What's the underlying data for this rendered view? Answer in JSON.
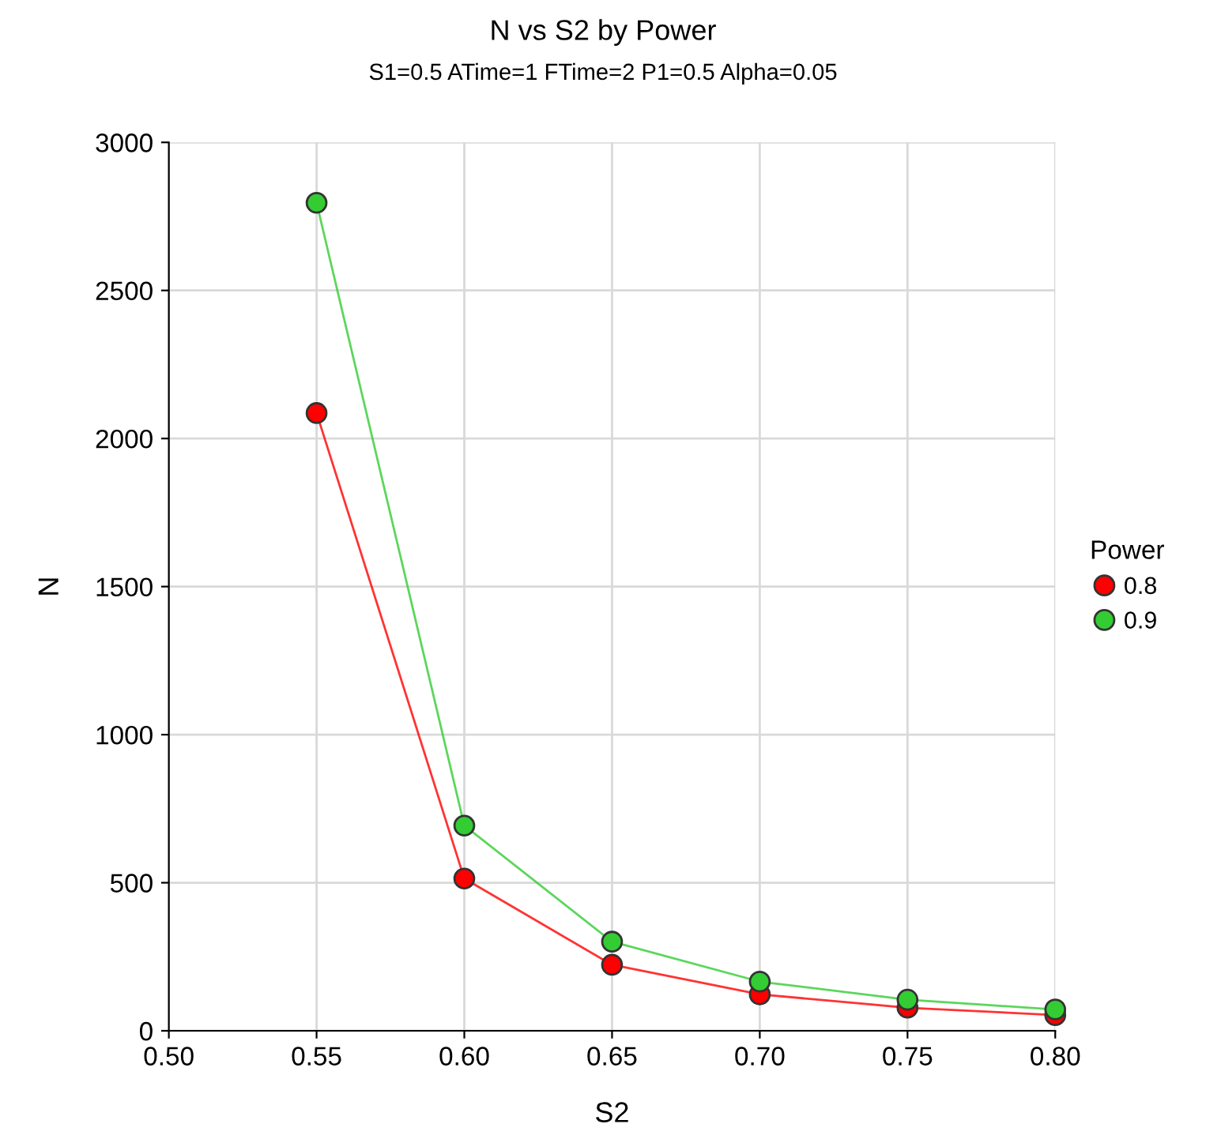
{
  "chart_data": {
    "type": "line",
    "title": "N vs S2 by Power",
    "subtitle": "S1=0.5 ATime=1 FTime=2 P1=0.5 Alpha=0.05",
    "xlabel": "S2",
    "ylabel": "N",
    "legend_title": "Power",
    "x": [
      0.55,
      0.6,
      0.65,
      0.7,
      0.75,
      0.8
    ],
    "series": [
      {
        "name": "0.8",
        "color": "#ff0000",
        "values": [
          2086,
          514,
          223,
          123,
          78,
          53
        ]
      },
      {
        "name": "0.9",
        "color": "#33cc33",
        "values": [
          2796,
          693,
          301,
          166,
          105,
          72
        ]
      }
    ],
    "xlim": [
      0.5,
      0.8
    ],
    "xticks": [
      {
        "value": 0.5,
        "label": "0.50"
      },
      {
        "value": 0.55,
        "label": "0.55"
      },
      {
        "value": 0.6,
        "label": "0.60"
      },
      {
        "value": 0.65,
        "label": "0.65"
      },
      {
        "value": 0.7,
        "label": "0.70"
      },
      {
        "value": 0.75,
        "label": "0.75"
      },
      {
        "value": 0.8,
        "label": "0.80"
      }
    ],
    "ylim": [
      0,
      3000
    ],
    "yticks": [
      0,
      500,
      1000,
      1500,
      2000,
      2500,
      3000
    ],
    "grid": true,
    "legend": "right",
    "marker": "circle",
    "line_style": "solid"
  }
}
